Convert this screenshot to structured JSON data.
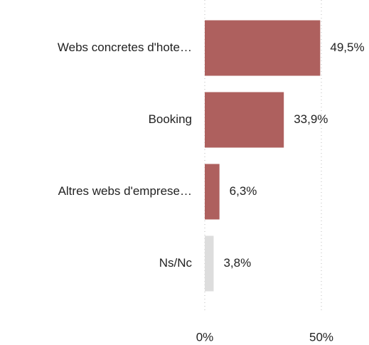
{
  "chart_data": {
    "type": "bar",
    "orientation": "horizontal",
    "categories": [
      "Webs concretes d'hote…",
      "Booking",
      "Altres webs d'emprese…",
      "Ns/Nc"
    ],
    "values": [
      49.5,
      33.9,
      6.3,
      3.8
    ],
    "value_labels": [
      "49,5%",
      "33,9%",
      "6,3%",
      "3,8%"
    ],
    "colors": [
      "#ae605e",
      "#ae605e",
      "#ae605e",
      "#dddddd"
    ],
    "xlim": [
      0,
      50
    ],
    "xticks": [
      {
        "value": 0,
        "label": "0%"
      },
      {
        "value": 50,
        "label": "50%"
      }
    ],
    "grid": true
  }
}
